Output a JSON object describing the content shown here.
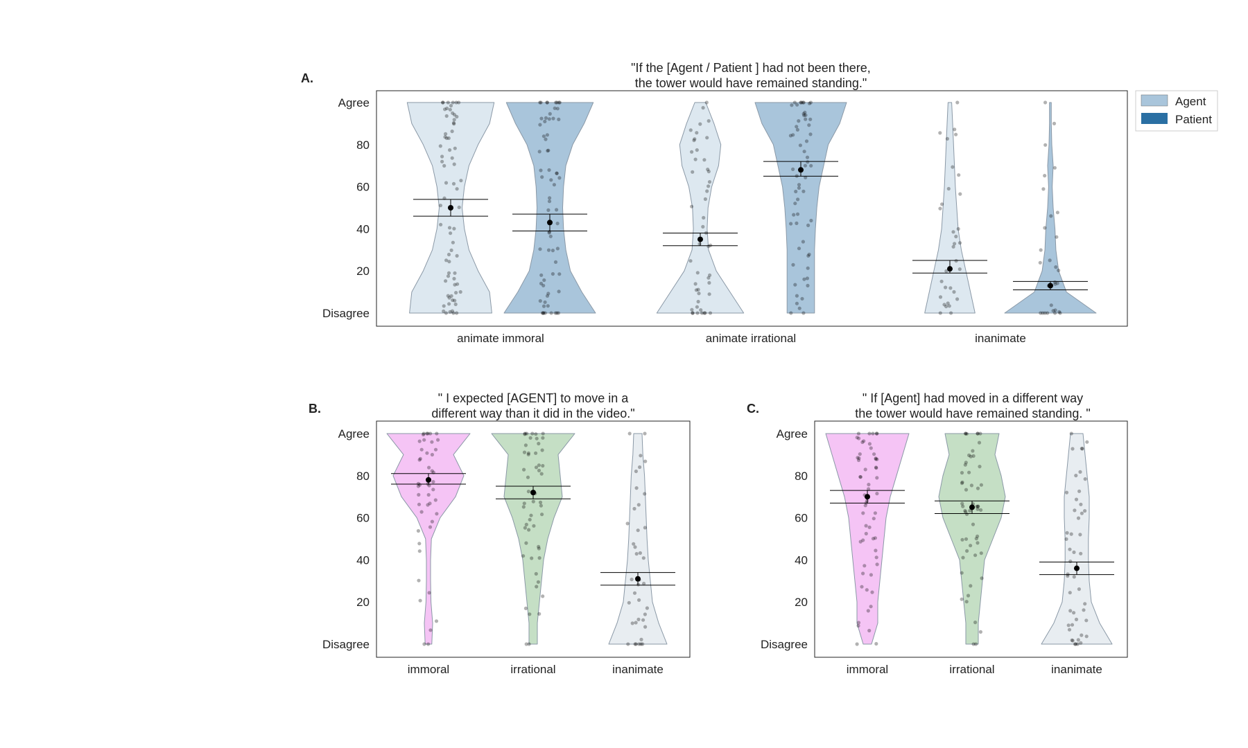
{
  "chart_data": [
    {
      "panel": "A.",
      "type": "violin",
      "title_lines": [
        "\"If the [Agent / Patient ] had not been there,",
        "the tower would have remained standing.\""
      ],
      "categories": [
        "animate immoral",
        "animate irrational",
        "inanimate"
      ],
      "ylim": [
        0,
        100
      ],
      "yticks": [
        "Disagree",
        "20",
        "40",
        "60",
        "80",
        "Agree"
      ],
      "legend": {
        "position": "outside right",
        "entries": [
          {
            "label": "Agent",
            "color": "#a9c5db"
          },
          {
            "label": "Patient",
            "color": "#2a6fa3"
          }
        ]
      },
      "series": [
        {
          "name": "Agent",
          "color": "#dde8f0",
          "means": [
            50,
            35,
            21
          ],
          "ci_low": [
            46,
            32,
            19
          ],
          "ci_high": [
            54,
            38,
            25
          ],
          "density": [
            [
              0.9,
              0.85,
              0.6,
              0.4,
              0.3,
              0.25,
              0.3,
              0.4,
              0.6,
              0.85,
              0.95
            ],
            [
              0.95,
              0.65,
              0.35,
              0.18,
              0.15,
              0.17,
              0.25,
              0.4,
              0.45,
              0.3,
              0.12
            ],
            [
              0.55,
              0.45,
              0.35,
              0.25,
              0.18,
              0.15,
              0.12,
              0.1,
              0.08,
              0.06,
              0.04
            ]
          ]
        },
        {
          "name": "Patient",
          "color": "#a9c5db",
          "means": [
            43,
            68,
            13
          ],
          "ci_low": [
            39,
            65,
            11
          ],
          "ci_high": [
            47,
            72,
            15
          ],
          "density": [
            [
              1.0,
              0.7,
              0.45,
              0.35,
              0.3,
              0.28,
              0.3,
              0.35,
              0.5,
              0.75,
              0.95
            ],
            [
              0.3,
              0.3,
              0.3,
              0.3,
              0.32,
              0.35,
              0.4,
              0.5,
              0.6,
              0.85,
              1.0
            ],
            [
              1.0,
              0.35,
              0.18,
              0.12,
              0.1,
              0.06,
              0.04,
              0.06,
              0.03,
              0.02,
              0.02
            ]
          ]
        }
      ]
    },
    {
      "panel": "B.",
      "type": "violin",
      "title_lines": [
        "\" I expected [AGENT] to move in a",
        "different way than it did in the video.\""
      ],
      "categories": [
        "immoral",
        "irrational",
        "inanimate"
      ],
      "ylim": [
        0,
        100
      ],
      "yticks": [
        "Disagree",
        "20",
        "40",
        "60",
        "80",
        "Agree"
      ],
      "colors": [
        "#f5c4f5",
        "#c5dfc5",
        "#e8edf1"
      ],
      "means": [
        78,
        72,
        31
      ],
      "ci_low": [
        76,
        69,
        28
      ],
      "ci_high": [
        81,
        75,
        34
      ],
      "density": [
        [
          0.08,
          0.1,
          0.06,
          0.05,
          0.05,
          0.07,
          0.28,
          0.65,
          0.85,
          0.6,
          1.0
        ],
        [
          0.1,
          0.1,
          0.15,
          0.2,
          0.25,
          0.35,
          0.5,
          0.7,
          0.65,
          0.6,
          1.0
        ],
        [
          0.7,
          0.5,
          0.35,
          0.3,
          0.25,
          0.22,
          0.2,
          0.18,
          0.16,
          0.12,
          0.1
        ]
      ]
    },
    {
      "panel": "C.",
      "type": "violin",
      "title_lines": [
        "\" If [Agent] had moved in a different way",
        "the tower would have remained standing. \""
      ],
      "categories": [
        "immoral",
        "irrational",
        "inanimate"
      ],
      "ylim": [
        0,
        100
      ],
      "yticks": [
        "Disagree",
        "20",
        "40",
        "60",
        "80",
        "Agree"
      ],
      "colors": [
        "#f5c4f5",
        "#c5dfc5",
        "#e8edf1"
      ],
      "means": [
        70,
        65,
        36
      ],
      "ci_low": [
        67,
        62,
        33
      ],
      "ci_high": [
        73,
        68,
        39
      ],
      "density": [
        [
          0.1,
          0.25,
          0.25,
          0.3,
          0.35,
          0.4,
          0.45,
          0.55,
          0.7,
          0.85,
          1.0
        ],
        [
          0.15,
          0.15,
          0.2,
          0.25,
          0.3,
          0.5,
          0.7,
          0.8,
          0.7,
          0.55,
          0.65
        ],
        [
          0.85,
          0.55,
          0.35,
          0.3,
          0.28,
          0.28,
          0.3,
          0.3,
          0.25,
          0.2,
          0.15
        ]
      ]
    }
  ]
}
